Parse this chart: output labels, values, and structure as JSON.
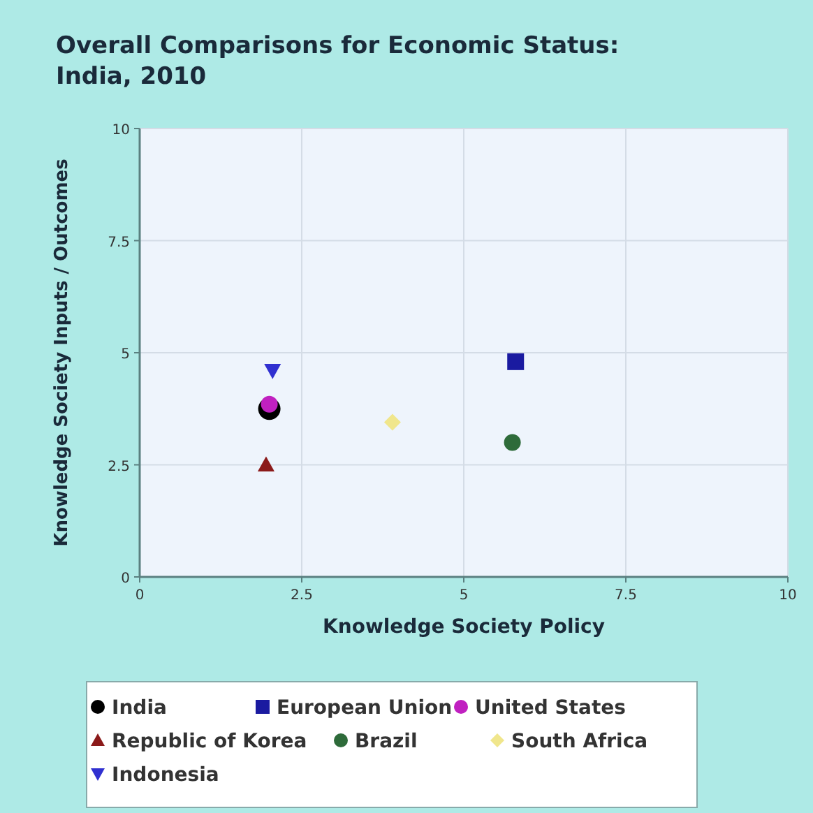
{
  "chart_data": {
    "type": "scatter",
    "title": "Overall Comparisons for Economic Status:\nIndia, 2010",
    "xlabel": "Knowledge Society Policy",
    "ylabel": "Knowledge Society Inputs / Outcomes",
    "xlim": [
      0,
      10
    ],
    "ylim": [
      0,
      10
    ],
    "xticks": [
      0,
      2.5,
      5,
      7.5,
      10
    ],
    "yticks": [
      0,
      2.5,
      5,
      7.5,
      10
    ],
    "grid": true,
    "legend": "bottom",
    "series": [
      {
        "name": "India",
        "color": "#000000",
        "marker": "circle",
        "x": [
          2
        ],
        "values": [
          3.75
        ]
      },
      {
        "name": "European Union",
        "color": "#1a1aa0",
        "marker": "square",
        "x": [
          5.8
        ],
        "values": [
          4.8
        ]
      },
      {
        "name": "United States",
        "color": "#c020c0",
        "marker": "circle",
        "x": [
          2
        ],
        "values": [
          3.85
        ]
      },
      {
        "name": "Republic of Korea",
        "color": "#8b1a1a",
        "marker": "triangle",
        "x": [
          1.95
        ],
        "values": [
          2.5
        ]
      },
      {
        "name": "Brazil",
        "color": "#2e6b3a",
        "marker": "circle",
        "x": [
          5.75
        ],
        "values": [
          3
        ]
      },
      {
        "name": "South Africa",
        "color": "#f0e68c",
        "marker": "diamond",
        "x": [
          3.9
        ],
        "values": [
          3.45
        ]
      },
      {
        "name": "Indonesia",
        "color": "#3030d0",
        "marker": "triangle-down",
        "x": [
          2.05
        ],
        "values": [
          4.6
        ]
      }
    ]
  }
}
